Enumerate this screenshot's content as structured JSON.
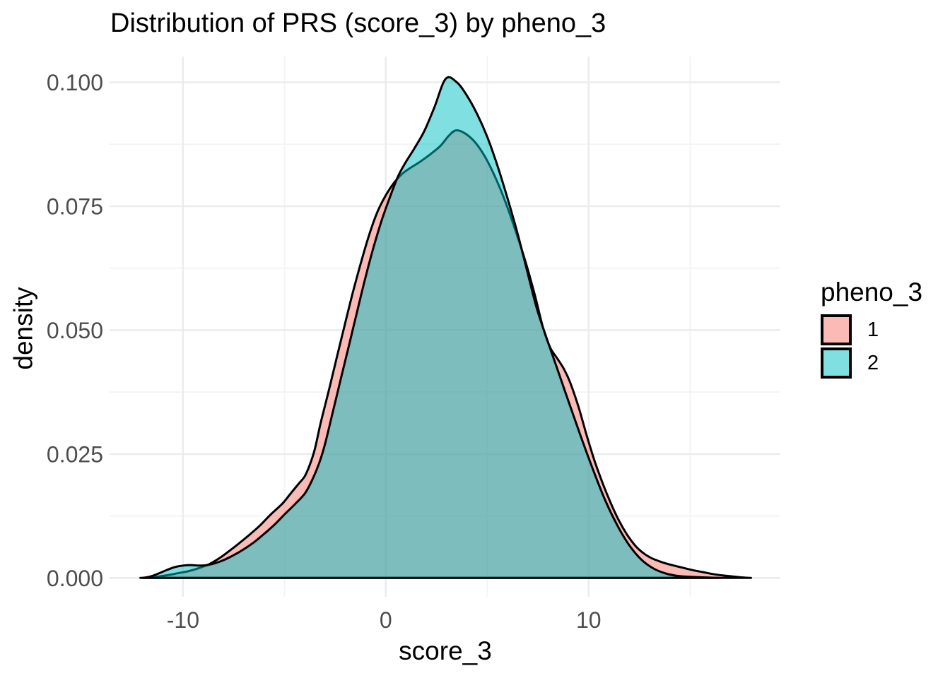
{
  "chart_data": {
    "type": "area",
    "title": "Distribution of PRS (score_3) by pheno_3",
    "xlabel": "score_3",
    "ylabel": "density",
    "legend": {
      "title": "pheno_3",
      "position": "right",
      "labels": [
        "1",
        "2"
      ]
    },
    "x_axis": {
      "range": [
        -13.62,
        19.45
      ],
      "major_ticks": [
        -10,
        0,
        10
      ],
      "tick_labels": [
        "-10",
        "0",
        "10"
      ],
      "minor_ticks": [
        -5,
        5,
        15
      ]
    },
    "y_axis": {
      "range": [
        -0.0038,
        0.1052
      ],
      "major_ticks": [
        0,
        0.025,
        0.05,
        0.075,
        0.1
      ],
      "tick_labels": [
        "0.000",
        "0.025",
        "0.050",
        "0.075",
        "0.100"
      ],
      "minor_ticks": [
        0.0125,
        0.0375,
        0.0625,
        0.0875
      ]
    },
    "grid": {
      "major_color": "#EBEBEB",
      "minor_color": "#F3F3F3",
      "major_width": 2.5,
      "minor_width": 1.8
    },
    "styles": {
      "background": "#FFFFFF",
      "tick_label_color": "#4D4D4D",
      "curve_stroke": "#000000",
      "curve_stroke_width": 3
    },
    "series": [
      {
        "name": "1",
        "fill": "#F8766D",
        "fill_opacity": 0.5,
        "points": [
          [
            -12.1,
            0
          ],
          [
            -11.7,
            0.0001
          ],
          [
            -11.2,
            0.0003
          ],
          [
            -10.7,
            0.0006
          ],
          [
            -10.2,
            0.001
          ],
          [
            -9.7,
            0.0014
          ],
          [
            -9.2,
            0.002
          ],
          [
            -8.7,
            0.0028
          ],
          [
            -8.2,
            0.004
          ],
          [
            -7.7,
            0.0055
          ],
          [
            -7.2,
            0.0071
          ],
          [
            -6.7,
            0.0088
          ],
          [
            -6.2,
            0.0106
          ],
          [
            -5.7,
            0.0127
          ],
          [
            -5.1,
            0.015
          ],
          [
            -4.7,
            0.017
          ],
          [
            -4.3,
            0.019
          ],
          [
            -4.0,
            0.0205
          ],
          [
            -3.75,
            0.0228
          ],
          [
            -3.5,
            0.026
          ],
          [
            -3.2,
            0.0315
          ],
          [
            -2.8,
            0.038
          ],
          [
            -2.4,
            0.0448
          ],
          [
            -2.0,
            0.0515
          ],
          [
            -1.6,
            0.058
          ],
          [
            -1.2,
            0.064
          ],
          [
            -0.8,
            0.0695
          ],
          [
            -0.4,
            0.074
          ],
          [
            0.0,
            0.0772
          ],
          [
            0.4,
            0.0797
          ],
          [
            0.8,
            0.0815
          ],
          [
            1.2,
            0.0827
          ],
          [
            1.7,
            0.084
          ],
          [
            2.2,
            0.0855
          ],
          [
            2.7,
            0.0872
          ],
          [
            3.1,
            0.0892
          ],
          [
            3.45,
            0.0903
          ],
          [
            3.9,
            0.0897
          ],
          [
            4.4,
            0.0879
          ],
          [
            4.9,
            0.0849
          ],
          [
            5.4,
            0.0808
          ],
          [
            5.9,
            0.0758
          ],
          [
            6.4,
            0.07
          ],
          [
            6.9,
            0.0636
          ],
          [
            7.35,
            0.057
          ],
          [
            7.75,
            0.0505
          ],
          [
            8.1,
            0.0465
          ],
          [
            8.45,
            0.0443
          ],
          [
            8.8,
            0.042
          ],
          [
            9.1,
            0.0393
          ],
          [
            9.5,
            0.0345
          ],
          [
            9.9,
            0.0288
          ],
          [
            10.3,
            0.0235
          ],
          [
            10.7,
            0.019
          ],
          [
            11.1,
            0.015
          ],
          [
            11.5,
            0.0115
          ],
          [
            11.9,
            0.0087
          ],
          [
            12.3,
            0.0065
          ],
          [
            12.7,
            0.005
          ],
          [
            13.1,
            0.004
          ],
          [
            13.6,
            0.0032
          ],
          [
            14.1,
            0.0026
          ],
          [
            14.6,
            0.0021
          ],
          [
            15.1,
            0.0016
          ],
          [
            15.6,
            0.0012
          ],
          [
            16.1,
            0.0008
          ],
          [
            16.6,
            0.0005
          ],
          [
            17.1,
            0.0003
          ],
          [
            17.6,
            0.0001
          ],
          [
            18.0,
            0
          ]
        ]
      },
      {
        "name": "2",
        "fill": "#00BFC4",
        "fill_opacity": 0.5,
        "points": [
          [
            -12.0,
            0
          ],
          [
            -11.6,
            0.0003
          ],
          [
            -11.2,
            0.0009
          ],
          [
            -10.8,
            0.0016
          ],
          [
            -10.4,
            0.0022
          ],
          [
            -10.0,
            0.0025
          ],
          [
            -9.6,
            0.0026
          ],
          [
            -9.2,
            0.0025
          ],
          [
            -8.8,
            0.0026
          ],
          [
            -8.4,
            0.003
          ],
          [
            -8.0,
            0.0036
          ],
          [
            -7.5,
            0.0046
          ],
          [
            -7.0,
            0.0058
          ],
          [
            -6.5,
            0.0072
          ],
          [
            -6.0,
            0.0089
          ],
          [
            -5.5,
            0.0107
          ],
          [
            -5.0,
            0.0128
          ],
          [
            -4.5,
            0.0148
          ],
          [
            -4.0,
            0.017
          ],
          [
            -3.65,
            0.0196
          ],
          [
            -3.3,
            0.023
          ],
          [
            -3.0,
            0.027
          ],
          [
            -2.6,
            0.0337
          ],
          [
            -2.2,
            0.0405
          ],
          [
            -1.8,
            0.0472
          ],
          [
            -1.4,
            0.054
          ],
          [
            -1.0,
            0.0607
          ],
          [
            -0.6,
            0.0668
          ],
          [
            -0.2,
            0.0722
          ],
          [
            0.2,
            0.0768
          ],
          [
            0.6,
            0.081
          ],
          [
            1.0,
            0.084
          ],
          [
            1.4,
            0.0866
          ],
          [
            1.9,
            0.0902
          ],
          [
            2.4,
            0.095
          ],
          [
            2.95,
            0.1007
          ],
          [
            3.5,
            0.1
          ],
          [
            4.0,
            0.0973
          ],
          [
            4.5,
            0.0936
          ],
          [
            5.0,
            0.089
          ],
          [
            5.5,
            0.0832
          ],
          [
            6.0,
            0.0766
          ],
          [
            6.5,
            0.0694
          ],
          [
            7.0,
            0.0614
          ],
          [
            7.4,
            0.055
          ],
          [
            7.75,
            0.0505
          ],
          [
            8.4,
            0.0428
          ],
          [
            9.0,
            0.0357
          ],
          [
            9.6,
            0.0287
          ],
          [
            10.2,
            0.022
          ],
          [
            10.8,
            0.0158
          ],
          [
            11.4,
            0.0107
          ],
          [
            12.0,
            0.0066
          ],
          [
            12.6,
            0.0037
          ],
          [
            13.2,
            0.0019
          ],
          [
            13.8,
            0.0009
          ],
          [
            14.4,
            0.0004
          ],
          [
            15.1,
            0.0002
          ],
          [
            15.8,
            0.0001
          ],
          [
            16.4,
            0
          ]
        ]
      }
    ]
  }
}
